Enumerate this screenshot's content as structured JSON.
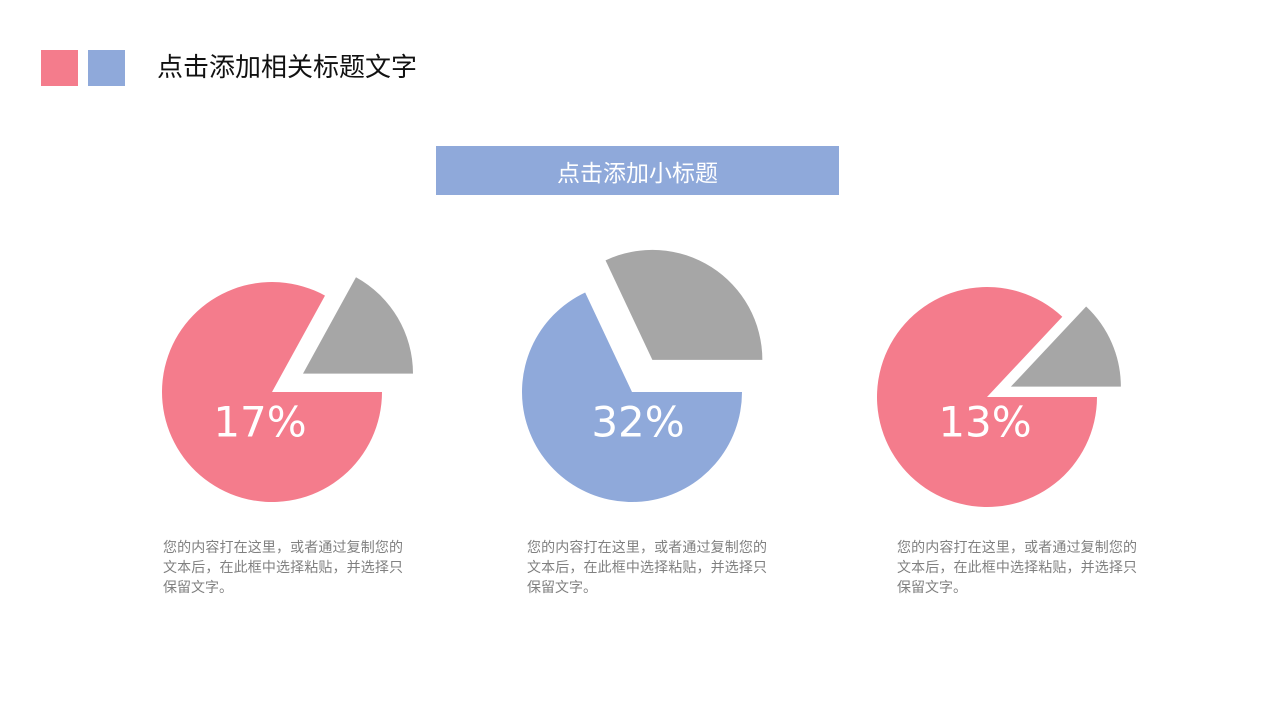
{
  "header": {
    "title": "点击添加相关标题文字",
    "squares": [
      "#F47C8C",
      "#8FA9DA"
    ]
  },
  "subtitle": {
    "text": "点击添加小标题",
    "color": "#8FA9DA"
  },
  "colors": {
    "pink": "#F47C8C",
    "blue": "#8FA9DA",
    "gray": "#A6A6A6"
  },
  "chart_data": [
    {
      "type": "pie",
      "values": [
        17,
        83
      ],
      "slices": [
        {
          "value": 17,
          "color": "#A6A6A6",
          "exploded": true
        },
        {
          "value": 83,
          "color": "#F47C8C",
          "exploded": false
        }
      ],
      "data_label": "17%",
      "description": "您的内容打在这里，或者通过复制您的文本后，在此框中选择粘贴，并选择只保留文字。"
    },
    {
      "type": "pie",
      "values": [
        32,
        68
      ],
      "slices": [
        {
          "value": 32,
          "color": "#A6A6A6",
          "exploded": true
        },
        {
          "value": 68,
          "color": "#8FA9DA",
          "exploded": false
        }
      ],
      "data_label": "32%",
      "description": "您的内容打在这里，或者通过复制您的文本后，在此框中选择粘贴，并选择只保留文字。"
    },
    {
      "type": "pie",
      "values": [
        13,
        87
      ],
      "slices": [
        {
          "value": 13,
          "color": "#A6A6A6",
          "exploded": true
        },
        {
          "value": 87,
          "color": "#F47C8C",
          "exploded": false
        }
      ],
      "data_label": "13%",
      "description": "您的内容打在这里，或者通过复制您的文本后，在此框中选择粘贴，并选择只保留文字。"
    }
  ]
}
